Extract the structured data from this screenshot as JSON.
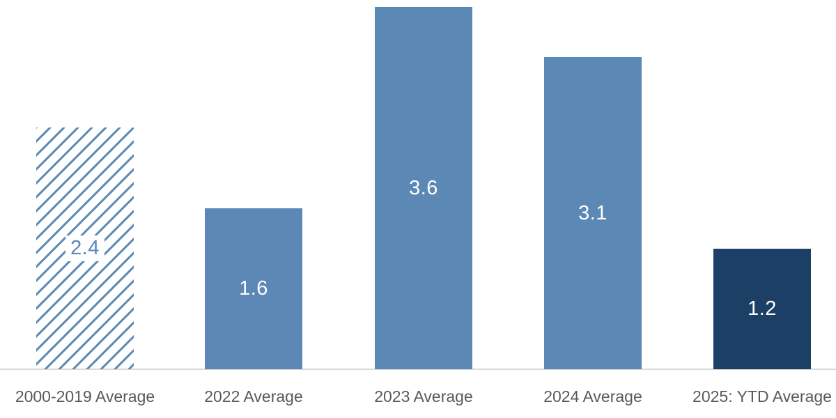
{
  "chart_data": {
    "type": "bar",
    "categories": [
      "2000-2019 Average",
      "2022 Average",
      "2023 Average",
      "2024 Average",
      "2025: YTD Average"
    ],
    "values": [
      2.4,
      1.6,
      3.6,
      3.1,
      1.2
    ],
    "value_labels": [
      "2.4",
      "1.6",
      "3.6",
      "3.1",
      "1.2"
    ],
    "bar_styles": [
      "hatched",
      "solid",
      "solid",
      "solid",
      "solid-dark"
    ],
    "ylim": [
      0,
      3.6
    ],
    "grid": false,
    "legend": false,
    "colors": {
      "solid_fill": "#5b88b5",
      "dark_fill": "#1c3f66",
      "hatch_line": "#5b88b5",
      "hatch_background": "#ffffff",
      "value_label_on_solid": "#ffffff",
      "value_label_on_hatch": "#5b88b5",
      "category_label": "#595959",
      "axis_line": "#d9d9d9"
    }
  }
}
